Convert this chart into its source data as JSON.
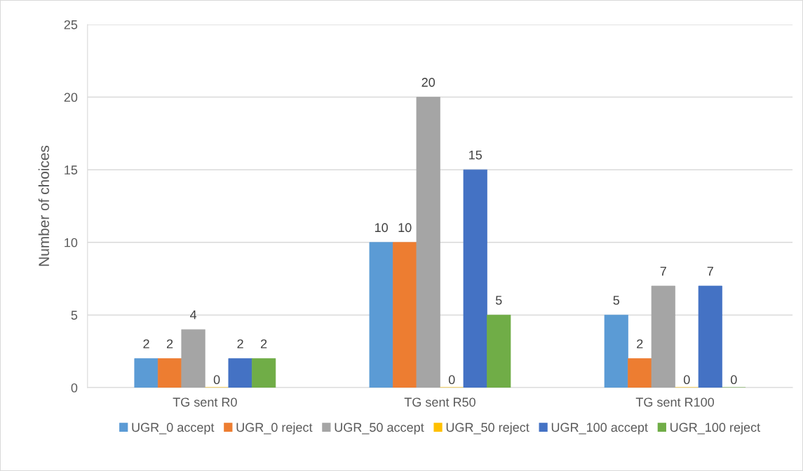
{
  "chart_data": {
    "type": "bar",
    "ylabel": "Number of choices",
    "categories": [
      "TG sent R0",
      "TG sent R50",
      "TG sent R100"
    ],
    "series": [
      {
        "name": "UGR_0 accept",
        "color": "#5b9bd5",
        "values": [
          2,
          10,
          5
        ]
      },
      {
        "name": "UGR_0 reject",
        "color": "#ed7d31",
        "values": [
          2,
          10,
          2
        ]
      },
      {
        "name": "UGR_50 accept",
        "color": "#a5a5a5",
        "values": [
          4,
          20,
          7
        ]
      },
      {
        "name": "UGR_50 reject",
        "color": "#ffc000",
        "values": [
          0,
          0,
          0
        ]
      },
      {
        "name": "UGR_100 accept",
        "color": "#4472c4",
        "values": [
          2,
          15,
          7
        ]
      },
      {
        "name": "UGR_100 reject",
        "color": "#70ad47",
        "values": [
          2,
          5,
          0
        ]
      }
    ],
    "ylim": [
      0,
      25
    ],
    "yticks": [
      0,
      5,
      10,
      15,
      20,
      25
    ],
    "grid": "y",
    "legend": "bottom",
    "data_labels": true
  }
}
